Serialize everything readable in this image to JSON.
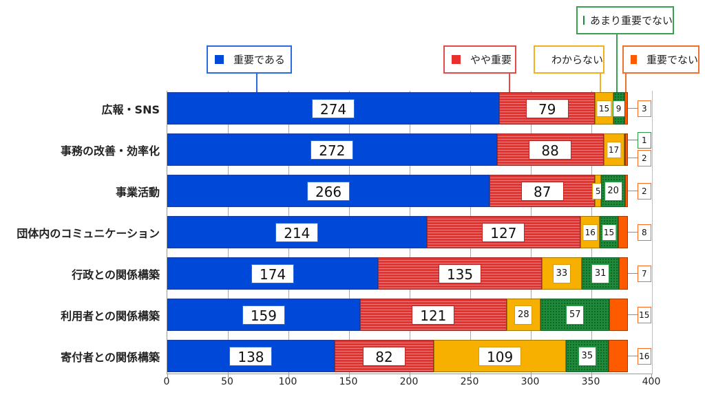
{
  "chart_data": {
    "type": "bar",
    "orientation": "horizontal",
    "stacked": true,
    "title": "",
    "xlabel": "",
    "ylabel": "",
    "xlim": [
      0,
      400
    ],
    "xticks": [
      0,
      50,
      100,
      150,
      200,
      250,
      300,
      350,
      400
    ],
    "grid": true,
    "legend_position": "top-callouts",
    "categories": [
      "広報・SNS",
      "事務の改善・効率化",
      "事業活動",
      "団体内のコミュニケーション",
      "行政との関係構築",
      "利用者との関係構築",
      "寄付者との関係構築"
    ],
    "series": [
      {
        "name": "重要である",
        "color": "#0048d8",
        "values": [
          274,
          272,
          266,
          214,
          174,
          159,
          138
        ]
      },
      {
        "name": "やや重要",
        "color": "#e8302e",
        "values": [
          79,
          88,
          87,
          127,
          135,
          121,
          82
        ]
      },
      {
        "name": "わからない",
        "color": "#f7b000",
        "values": [
          15,
          17,
          5,
          16,
          33,
          28,
          109
        ]
      },
      {
        "name": "あまり重要でない",
        "color": "#1f8a3a",
        "values": [
          9,
          1,
          20,
          15,
          31,
          57,
          35
        ]
      },
      {
        "name": "重要でない",
        "color": "#fe5a00",
        "values": [
          3,
          2,
          2,
          8,
          7,
          15,
          16
        ]
      }
    ]
  },
  "legend": [
    {
      "label": "重要である",
      "color": "#0048d8",
      "border": "#2a6ae0"
    },
    {
      "label": "やや重要",
      "color": "#e8302e",
      "border": "#e04a48"
    },
    {
      "label": "わからない",
      "color": "#f7b000",
      "border": "#f0b020"
    },
    {
      "label": "あまり重要でない",
      "color": "#1f8a3a",
      "border": "#3aa050"
    },
    {
      "label": "重要でない",
      "color": "#fe5a00",
      "border": "#f07030"
    }
  ],
  "axis": {
    "x_tick_labels": [
      "0",
      "50",
      "100",
      "150",
      "200",
      "250",
      "300",
      "350",
      "400"
    ]
  }
}
